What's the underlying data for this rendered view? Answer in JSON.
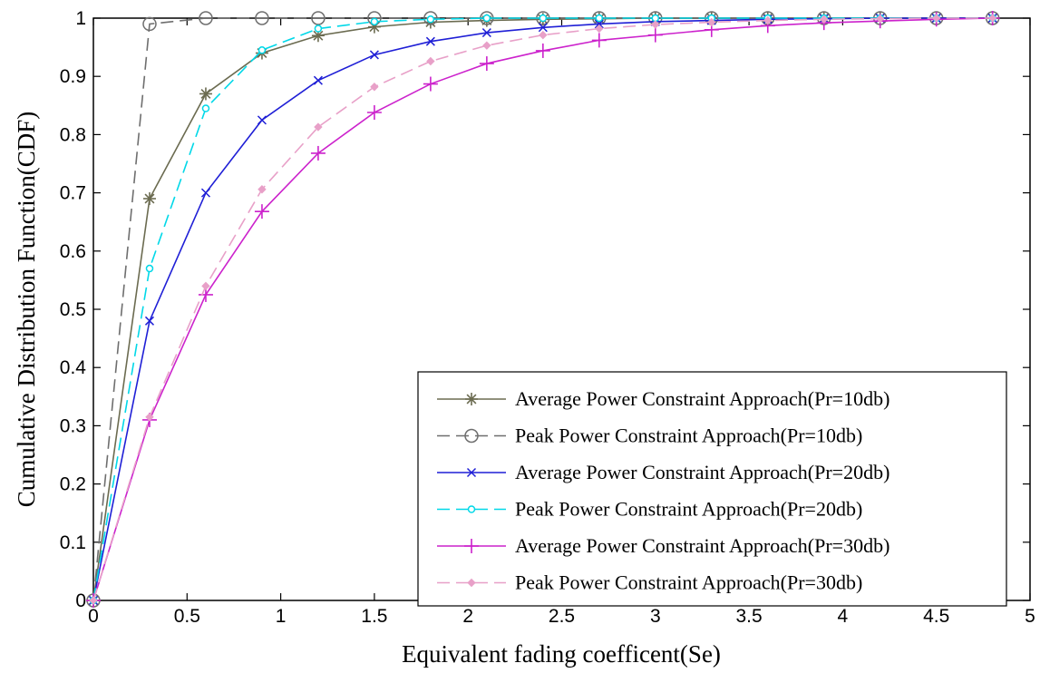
{
  "chart_data": {
    "type": "line",
    "xlabel": "Equivalent fading coefficent(Se)",
    "ylabel": "Cumulative Distribution Function(CDF)",
    "xlim": [
      0,
      5
    ],
    "ylim": [
      0,
      1
    ],
    "xticks": [
      "0",
      "0.5",
      "1",
      "1.5",
      "2",
      "2.5",
      "3",
      "3.5",
      "4",
      "4.5",
      "5"
    ],
    "yticks": [
      "0",
      "0.1",
      "0.2",
      "0.3",
      "0.4",
      "0.5",
      "0.6",
      "0.7",
      "0.8",
      "0.9",
      "1"
    ],
    "grid": false,
    "legend_position": "bottom-right",
    "x": [
      0,
      0.3,
      0.6,
      0.9,
      1.2,
      1.5,
      1.8,
      2.1,
      2.4,
      2.7,
      3.0,
      3.3,
      3.6,
      3.9,
      4.2,
      4.5,
      4.8
    ],
    "series": [
      {
        "name": "Average Power Constraint Approach(Pr=10db)",
        "color": "#6b6b50",
        "marker": "asterisk",
        "dash": "solid",
        "values": [
          0,
          0.69,
          0.87,
          0.94,
          0.97,
          0.985,
          0.993,
          0.996,
          0.998,
          0.999,
          1,
          1,
          1,
          1,
          1,
          1,
          1
        ]
      },
      {
        "name": "Peak Power Constraint Approach(Pr=10db)",
        "color": "#6e6e6e",
        "marker": "circle",
        "dash": "dashed",
        "values": [
          0,
          0.99,
          1,
          1,
          1,
          1,
          1,
          1,
          1,
          1,
          1,
          1,
          1,
          1,
          1,
          1,
          1
        ]
      },
      {
        "name": "Average Power Constraint Approach(Pr=20db)",
        "color": "#1f1fd6",
        "marker": "x",
        "dash": "solid",
        "values": [
          0,
          0.48,
          0.7,
          0.825,
          0.893,
          0.937,
          0.96,
          0.975,
          0.984,
          0.99,
          0.994,
          0.996,
          0.998,
          0.999,
          1,
          1,
          1
        ]
      },
      {
        "name": "Peak Power Constraint Approach(Pr=20db)",
        "color": "#00d8e8",
        "marker": "circle-small",
        "dash": "dashed",
        "values": [
          0,
          0.57,
          0.845,
          0.945,
          0.982,
          0.994,
          0.998,
          1,
          1,
          1,
          1,
          1,
          1,
          1,
          1,
          1,
          1
        ]
      },
      {
        "name": "Average Power Constraint Approach(Pr=30db)",
        "color": "#cc22cc",
        "marker": "plus",
        "dash": "solid",
        "values": [
          0,
          0.31,
          0.525,
          0.668,
          0.768,
          0.838,
          0.887,
          0.922,
          0.944,
          0.962,
          0.971,
          0.98,
          0.987,
          0.992,
          0.995,
          0.998,
          1
        ]
      },
      {
        "name": "Peak Power Constraint Approach(Pr=30db)",
        "color": "#e8a0c8",
        "marker": "diamond",
        "dash": "dashed",
        "values": [
          0,
          0.315,
          0.54,
          0.706,
          0.813,
          0.882,
          0.926,
          0.953,
          0.971,
          0.982,
          0.989,
          0.993,
          0.996,
          0.998,
          0.999,
          1,
          1
        ]
      }
    ]
  }
}
